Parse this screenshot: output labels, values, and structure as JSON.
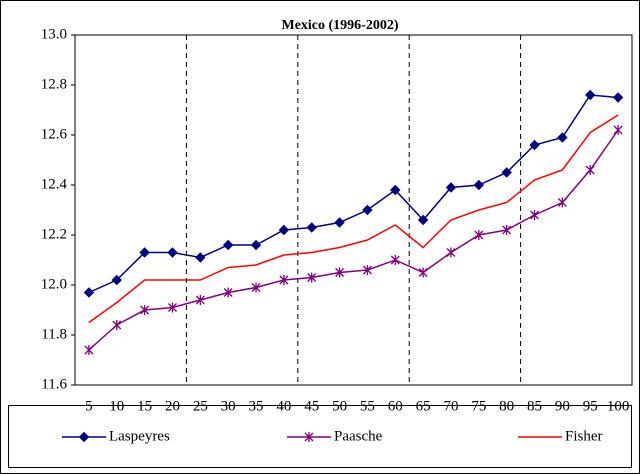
{
  "chart_data": {
    "type": "line",
    "title": "Mexico (1996-2002)",
    "categories": [
      "5",
      "10",
      "15",
      "20",
      "25",
      "30",
      "35",
      "40",
      "45",
      "50",
      "55",
      "60",
      "65",
      "70",
      "75",
      "80",
      "85",
      "90",
      "95",
      "100"
    ],
    "series": [
      {
        "name": "Laspeyres",
        "color": "#000080",
        "marker": "diamond",
        "values": [
          11.97,
          12.02,
          12.13,
          12.13,
          12.11,
          12.16,
          12.16,
          12.22,
          12.23,
          12.25,
          12.3,
          12.38,
          12.26,
          12.39,
          12.4,
          12.45,
          12.56,
          12.59,
          12.76,
          12.75
        ]
      },
      {
        "name": "Paasche",
        "color": "#800080",
        "marker": "star",
        "values": [
          11.74,
          11.84,
          11.9,
          11.91,
          11.94,
          11.97,
          11.99,
          12.02,
          12.03,
          12.05,
          12.06,
          12.1,
          12.05,
          12.13,
          12.2,
          12.22,
          12.28,
          12.33,
          12.46,
          12.62
        ]
      },
      {
        "name": "Fisher",
        "color": "#ff0000",
        "marker": "none",
        "values": [
          11.85,
          11.93,
          12.02,
          12.02,
          12.02,
          12.07,
          12.08,
          12.12,
          12.13,
          12.15,
          12.18,
          12.24,
          12.15,
          12.26,
          12.3,
          12.33,
          12.42,
          12.46,
          12.61,
          12.68
        ]
      }
    ],
    "ylim": [
      11.6,
      13.0
    ],
    "yticks": [
      {
        "value": 11.6,
        "label": "11.6"
      },
      {
        "value": 11.8,
        "label": "11.8"
      },
      {
        "value": 12.0,
        "label": "12.0"
      },
      {
        "value": 12.2,
        "label": "12.2"
      },
      {
        "value": 12.4,
        "label": "12.4"
      },
      {
        "value": 12.6,
        "label": "12.6"
      },
      {
        "value": 12.8,
        "label": "12.8"
      },
      {
        "value": 13.0,
        "label": "13.0"
      }
    ],
    "legend": "bottom"
  }
}
